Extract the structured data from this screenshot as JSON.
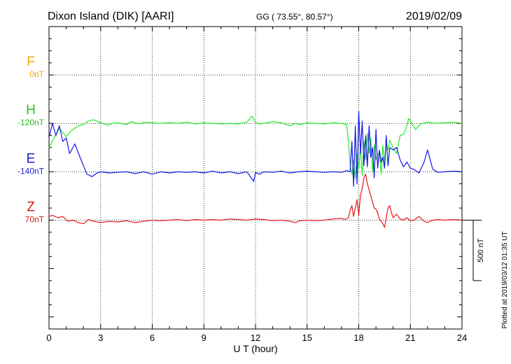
{
  "header": {
    "station": "Dixon Island (DIK)  [AARI]",
    "coords": "GG ( 73.55°,  80.57°)",
    "date": "2019/02/09"
  },
  "footer": {
    "plotted": "Plotted at 2019/03/12 01:35 UT"
  },
  "chart_data": {
    "type": "line",
    "xlabel": "U T (hour)",
    "xlim": [
      0,
      24
    ],
    "x_ticks": [
      "0",
      "3",
      "6",
      "9",
      "12",
      "15",
      "18",
      "21",
      "24"
    ],
    "ylim": [
      -1300,
      1200
    ],
    "grid": true,
    "scale_bar": {
      "label": "500 nT",
      "value": 500
    },
    "components": [
      {
        "letter": "F",
        "base": "0nT",
        "color": "#f5a800",
        "offset": 800
      },
      {
        "letter": "H",
        "base": "-120nT",
        "color": "#22c422",
        "offset": 400
      },
      {
        "letter": "E",
        "base": "-140nT",
        "color": "#1d1dc8",
        "offset": 0
      },
      {
        "letter": "Z",
        "base": "70nT",
        "color": "#e01818",
        "offset": -400
      }
    ],
    "series": [
      {
        "name": "H",
        "color": "#22ee22",
        "offset": 400,
        "x": [
          0,
          0.3,
          0.6,
          1.0,
          1.3,
          1.7,
          2.0,
          2.3,
          2.6,
          3.0,
          3.4,
          3.7,
          4.0,
          4.5,
          4.8,
          5.2,
          5.6,
          6.0,
          6.5,
          7.0,
          7.5,
          8.0,
          8.5,
          9.0,
          9.5,
          10.0,
          10.5,
          11.0,
          11.5,
          11.8,
          12.0,
          12.2,
          12.5,
          13.0,
          13.5,
          14.0,
          14.3,
          14.6,
          15.0,
          15.5,
          16.0,
          16.5,
          17.0,
          17.3,
          17.4,
          17.5,
          17.6,
          17.7,
          17.8,
          17.9,
          18.0,
          18.1,
          18.2,
          18.3,
          18.4,
          18.5,
          18.6,
          18.7,
          18.8,
          18.9,
          19.0,
          19.1,
          19.2,
          19.3,
          19.4,
          19.5,
          19.6,
          19.7,
          19.8,
          20.0,
          20.2,
          20.4,
          20.6,
          20.8,
          20.9,
          21.0,
          21.1,
          21.3,
          21.6,
          22.0,
          22.5,
          23.0,
          23.5,
          24.0
        ],
        "y": [
          -200,
          -120,
          -40,
          -110,
          -60,
          -20,
          -10,
          20,
          30,
          5,
          -15,
          0,
          5,
          -10,
          15,
          -5,
          10,
          5,
          0,
          5,
          0,
          10,
          -5,
          5,
          0,
          -5,
          0,
          -5,
          10,
          60,
          10,
          -5,
          0,
          15,
          5,
          -20,
          0,
          -10,
          5,
          0,
          -5,
          5,
          0,
          -10,
          -150,
          -350,
          -420,
          -300,
          -460,
          -250,
          -380,
          -200,
          -430,
          -150,
          -300,
          -80,
          -250,
          -120,
          -400,
          -180,
          -300,
          -260,
          -240,
          -420,
          -180,
          -330,
          -170,
          -220,
          -140,
          -200,
          -250,
          -100,
          -90,
          -20,
          40,
          20,
          -10,
          -50,
          -5,
          10,
          0,
          5,
          10,
          0
        ]
      },
      {
        "name": "E",
        "color": "#1818e8",
        "offset": 0,
        "x": [
          0,
          0.2,
          0.4,
          0.6,
          0.8,
          1.0,
          1.2,
          1.5,
          1.8,
          2.0,
          2.2,
          2.5,
          2.8,
          3.0,
          3.5,
          4.0,
          4.5,
          5.0,
          5.5,
          6.0,
          6.5,
          7.0,
          7.5,
          8.0,
          8.5,
          9.0,
          9.5,
          10.0,
          10.5,
          11.0,
          11.5,
          11.9,
          12.0,
          12.2,
          12.5,
          13.0,
          13.5,
          14.0,
          14.5,
          15.0,
          15.5,
          16.0,
          16.5,
          17.0,
          17.3,
          17.5,
          17.6,
          17.7,
          17.8,
          17.9,
          18.0,
          18.1,
          18.2,
          18.3,
          18.4,
          18.5,
          18.6,
          18.7,
          18.8,
          18.9,
          19.0,
          19.1,
          19.2,
          19.3,
          19.4,
          19.5,
          19.6,
          19.7,
          19.8,
          20.0,
          20.2,
          20.4,
          20.6,
          20.8,
          21.0,
          21.2,
          21.5,
          21.8,
          22.0,
          22.3,
          22.6,
          23.0,
          23.5,
          24.0
        ],
        "y": [
          280,
          400,
          300,
          380,
          250,
          280,
          150,
          230,
          120,
          50,
          -20,
          -40,
          -10,
          0,
          -10,
          -5,
          0,
          -15,
          0,
          -20,
          0,
          -10,
          0,
          -5,
          0,
          -10,
          5,
          -10,
          0,
          -15,
          0,
          -80,
          -5,
          -20,
          0,
          -5,
          5,
          -10,
          0,
          5,
          0,
          -5,
          0,
          -5,
          10,
          0,
          250,
          -120,
          380,
          -100,
          500,
          150,
          420,
          50,
          300,
          40,
          380,
          120,
          200,
          -50,
          350,
          30,
          180,
          80,
          120,
          30,
          300,
          50,
          200,
          180,
          200,
          100,
          40,
          80,
          30,
          20,
          -10,
          80,
          180,
          20,
          -5,
          0,
          5,
          0
        ]
      },
      {
        "name": "Z",
        "color": "#e81818",
        "offset": -400,
        "x": [
          0,
          0.2,
          0.5,
          0.8,
          1.1,
          1.4,
          1.7,
          2.0,
          2.3,
          2.6,
          3.0,
          3.5,
          4.0,
          4.5,
          5.0,
          5.5,
          6.0,
          6.5,
          7.0,
          7.5,
          8.0,
          8.5,
          9.0,
          9.5,
          10.0,
          10.5,
          11.0,
          11.5,
          12.0,
          12.5,
          13.0,
          13.5,
          14.0,
          14.3,
          14.6,
          15.0,
          15.5,
          16.0,
          16.5,
          17.0,
          17.2,
          17.4,
          17.5,
          17.6,
          17.7,
          17.8,
          17.9,
          18.0,
          18.1,
          18.2,
          18.3,
          18.4,
          18.5,
          18.6,
          18.7,
          18.8,
          18.9,
          19.0,
          19.1,
          19.2,
          19.3,
          19.4,
          19.5,
          19.6,
          19.7,
          19.8,
          19.9,
          20.0,
          20.2,
          20.4,
          20.6,
          20.8,
          21.0,
          21.2,
          21.5,
          21.8,
          22.0,
          22.3,
          22.6,
          23.0,
          23.5,
          24.0
        ],
        "y": [
          30,
          40,
          20,
          30,
          -10,
          0,
          -20,
          -30,
          5,
          -10,
          -20,
          -10,
          -15,
          -5,
          -20,
          -10,
          0,
          -5,
          0,
          5,
          -5,
          5,
          0,
          5,
          0,
          10,
          5,
          0,
          10,
          5,
          -5,
          0,
          -10,
          -20,
          -5,
          0,
          -5,
          0,
          10,
          15,
          5,
          20,
          80,
          120,
          30,
          100,
          170,
          40,
          210,
          260,
          350,
          380,
          300,
          250,
          200,
          150,
          100,
          90,
          60,
          10,
          -10,
          -30,
          -60,
          20,
          100,
          120,
          60,
          20,
          50,
          10,
          0,
          20,
          -5,
          0,
          30,
          -10,
          -20,
          0,
          5,
          0,
          5,
          0
        ]
      }
    ]
  }
}
